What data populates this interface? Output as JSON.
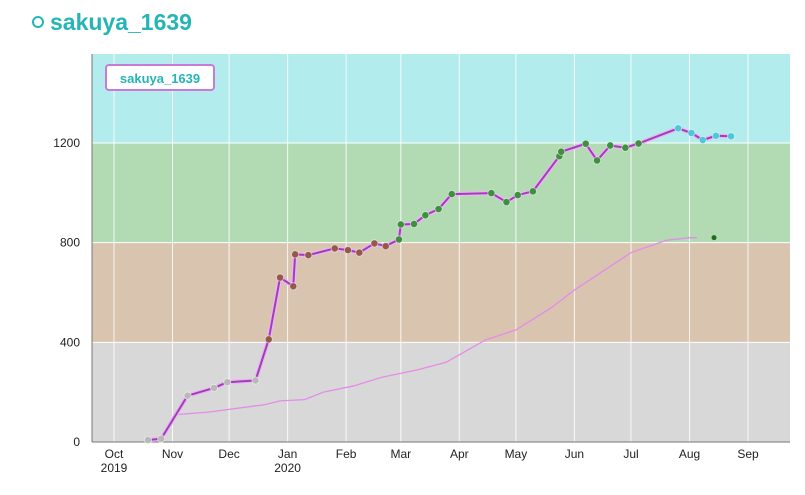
{
  "header": {
    "icon": "circle-icon",
    "title": "sakuya_1639"
  },
  "chart_data": {
    "type": "line",
    "legend": {
      "label": "sakuya_1639",
      "placement": "top-left"
    },
    "y_ticks": [
      0,
      400,
      800,
      1200
    ],
    "ylim": [
      0,
      1560
    ],
    "x_tick_labels": [
      [
        "Oct",
        "2019"
      ],
      [
        "Nov",
        ""
      ],
      [
        "Dec",
        ""
      ],
      [
        "Jan",
        "2020"
      ],
      [
        "Feb",
        ""
      ],
      [
        "Mar",
        ""
      ],
      [
        "Apr",
        ""
      ],
      [
        "May",
        ""
      ],
      [
        "Jun",
        ""
      ],
      [
        "Jul",
        ""
      ],
      [
        "Aug",
        ""
      ],
      [
        "Sep",
        ""
      ]
    ],
    "rating_bands": [
      {
        "from": 0,
        "to": 400,
        "color": "#d8d8d8"
      },
      {
        "from": 400,
        "to": 800,
        "color": "#d9c4b0"
      },
      {
        "from": 800,
        "to": 1200,
        "color": "#b2dbb4"
      },
      {
        "from": 1200,
        "to": 1560,
        "color": "#b2ecec"
      }
    ],
    "colors": {
      "rating_line": "#a23cb9",
      "performance_line": "#e48ce8",
      "grid": "#ffffff"
    },
    "series": [
      {
        "role": "rating",
        "points": [
          [
            "2019-10-19",
            8
          ],
          [
            "2019-10-26",
            13
          ],
          [
            "2019-11-09",
            186
          ],
          [
            "2019-11-23",
            217
          ],
          [
            "2019-11-30",
            240
          ],
          [
            "2019-12-15",
            247
          ],
          [
            "2019-12-22",
            412
          ],
          [
            "2019-12-28",
            660
          ],
          [
            "2020-01-04",
            625
          ],
          [
            "2020-01-05",
            753
          ],
          [
            "2020-01-12",
            750
          ],
          [
            "2020-01-26",
            777
          ],
          [
            "2020-02-02",
            770
          ],
          [
            "2020-02-08",
            760
          ],
          [
            "2020-02-16",
            797
          ],
          [
            "2020-02-22",
            786
          ],
          [
            "2020-02-29",
            813
          ],
          [
            "2020-03-01",
            873
          ],
          [
            "2020-03-08",
            875
          ],
          [
            "2020-03-14",
            910
          ],
          [
            "2020-03-21",
            935
          ],
          [
            "2020-03-28",
            995
          ],
          [
            "2020-04-18",
            999
          ],
          [
            "2020-04-26",
            963
          ],
          [
            "2020-05-02",
            991
          ],
          [
            "2020-05-10",
            1006
          ],
          [
            "2020-05-24",
            1147
          ],
          [
            "2020-05-25",
            1165
          ],
          [
            "2020-06-07",
            1197
          ],
          [
            "2020-06-13",
            1130
          ],
          [
            "2020-06-20",
            1190
          ],
          [
            "2020-06-28",
            1181
          ],
          [
            "2020-07-05",
            1198
          ],
          [
            "2020-07-26",
            1259
          ],
          [
            "2020-08-02",
            1240
          ],
          [
            "2020-08-08",
            1212
          ],
          [
            "2020-08-15",
            1229
          ],
          [
            "2020-08-23",
            1227
          ]
        ]
      },
      {
        "role": "performance",
        "points": [
          [
            "2019-10-19",
            5
          ],
          [
            "2019-10-28",
            30
          ],
          [
            "2019-10-31",
            80
          ],
          [
            "2019-11-03",
            110
          ],
          [
            "2019-11-20",
            120
          ],
          [
            "2019-12-20",
            150
          ],
          [
            "2019-12-28",
            165
          ],
          [
            "2020-01-10",
            170
          ],
          [
            "2020-01-20",
            200
          ],
          [
            "2020-02-05",
            225
          ],
          [
            "2020-02-20",
            260
          ],
          [
            "2020-03-10",
            290
          ],
          [
            "2020-03-25",
            320
          ],
          [
            "2020-04-01",
            350
          ],
          [
            "2020-04-15",
            410
          ],
          [
            "2020-05-01",
            450
          ],
          [
            "2020-05-20",
            540
          ],
          [
            "2020-06-01",
            610
          ],
          [
            "2020-06-15",
            680
          ],
          [
            "2020-07-01",
            760
          ],
          [
            "2020-07-20",
            810
          ],
          [
            "2020-08-01",
            820
          ],
          [
            "2020-08-05",
            820
          ]
        ]
      }
    ],
    "performance_marker": [
      "2020-08-14",
      820
    ]
  }
}
